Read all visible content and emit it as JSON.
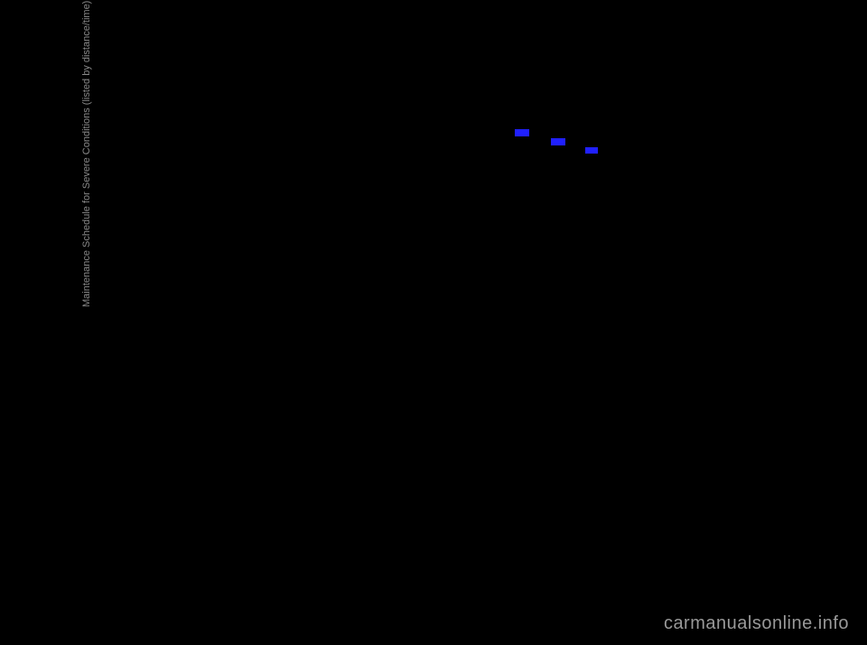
{
  "page": {
    "vertical_label": "Maintenance Schedule for Severe Conditions (listed by distance/time)",
    "watermark": "carmanualsonline.info"
  }
}
